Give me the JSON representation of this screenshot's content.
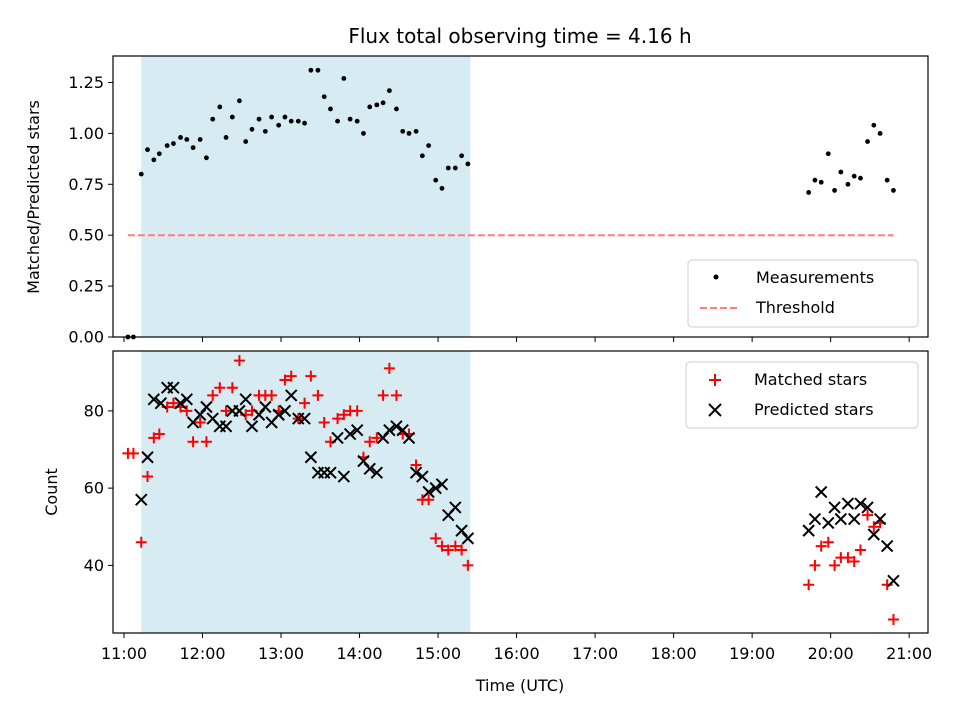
{
  "chart_data": [
    {
      "type": "scatter",
      "title": "Flux total observing time = 4.16 h",
      "xlabel": "",
      "ylabel": "Matched/Predicted stars",
      "xlim": [
        10.86,
        21.24
      ],
      "ylim": [
        0.0,
        1.38
      ],
      "yticks": [
        0.0,
        0.25,
        0.5,
        0.75,
        1.0,
        1.25
      ],
      "ytick_labels": [
        "0.00",
        "0.25",
        "0.50",
        "0.75",
        "1.00",
        "1.25"
      ],
      "shaded_span": {
        "x0": 11.22,
        "x1": 15.41,
        "color": "#add8e6"
      },
      "threshold": {
        "name": "Threshold",
        "y": 0.5,
        "x0": 11.05,
        "x1": 20.8,
        "color": "#ff7f7f"
      },
      "legend": {
        "position": "lower right",
        "entries": [
          "Measurements",
          "Threshold"
        ]
      },
      "series": [
        {
          "name": "Measurements",
          "marker": "dot",
          "color": "#000000",
          "x": [
            11.05,
            11.12,
            11.22,
            11.3,
            11.38,
            11.45,
            11.55,
            11.63,
            11.72,
            11.8,
            11.88,
            11.97,
            12.05,
            12.13,
            12.22,
            12.3,
            12.38,
            12.47,
            12.55,
            12.63,
            12.72,
            12.8,
            12.88,
            12.97,
            13.05,
            13.13,
            13.22,
            13.3,
            13.38,
            13.47,
            13.55,
            13.63,
            13.72,
            13.8,
            13.88,
            13.97,
            14.05,
            14.13,
            14.22,
            14.3,
            14.38,
            14.47,
            14.55,
            14.63,
            14.72,
            14.8,
            14.88,
            14.97,
            15.05,
            15.13,
            15.22,
            15.3,
            15.38,
            19.72,
            19.8,
            19.88,
            19.97,
            20.05,
            20.13,
            20.22,
            20.3,
            20.38,
            20.47,
            20.55,
            20.63,
            20.72,
            20.8
          ],
          "y": [
            0.0,
            0.0,
            0.8,
            0.92,
            0.87,
            0.9,
            0.94,
            0.95,
            0.98,
            0.97,
            0.93,
            0.97,
            0.88,
            1.07,
            1.13,
            0.98,
            1.08,
            1.16,
            0.96,
            1.02,
            1.07,
            1.01,
            1.08,
            1.04,
            1.08,
            1.06,
            1.06,
            1.05,
            1.31,
            1.31,
            1.18,
            1.12,
            1.06,
            1.27,
            1.07,
            1.06,
            1.0,
            1.13,
            1.14,
            1.15,
            1.21,
            1.12,
            1.01,
            1.0,
            1.01,
            0.89,
            0.94,
            0.77,
            0.73,
            0.83,
            0.83,
            0.89,
            0.85,
            0.71,
            0.77,
            0.76,
            0.9,
            0.72,
            0.81,
            0.75,
            0.79,
            0.78,
            0.96,
            1.04,
            1.0,
            0.77,
            0.72
          ]
        }
      ]
    },
    {
      "type": "scatter",
      "title": "",
      "xlabel": "Time (UTC)",
      "ylabel": "Count",
      "xlim": [
        10.86,
        21.24
      ],
      "ylim": [
        22.5,
        95.5
      ],
      "yticks": [
        40,
        60,
        80
      ],
      "ytick_labels": [
        "40",
        "60",
        "80"
      ],
      "xticks": [
        11,
        12,
        13,
        14,
        15,
        16,
        17,
        18,
        19,
        20,
        21
      ],
      "xtick_labels": [
        "11:00",
        "12:00",
        "13:00",
        "14:00",
        "15:00",
        "16:00",
        "17:00",
        "18:00",
        "19:00",
        "20:00",
        "21:00"
      ],
      "shaded_span": {
        "x0": 11.22,
        "x1": 15.41,
        "color": "#add8e6"
      },
      "legend": {
        "position": "upper right",
        "entries": [
          "Matched stars",
          "Predicted stars"
        ]
      },
      "series": [
        {
          "name": "Matched stars",
          "marker": "plus",
          "color": "#ff0000",
          "x": [
            11.05,
            11.12,
            11.22,
            11.3,
            11.38,
            11.45,
            11.55,
            11.63,
            11.72,
            11.8,
            11.88,
            11.97,
            12.05,
            12.13,
            12.22,
            12.3,
            12.38,
            12.47,
            12.55,
            12.63,
            12.72,
            12.8,
            12.88,
            12.97,
            13.05,
            13.13,
            13.22,
            13.3,
            13.38,
            13.47,
            13.55,
            13.63,
            13.72,
            13.8,
            13.88,
            13.97,
            14.05,
            14.13,
            14.22,
            14.3,
            14.38,
            14.47,
            14.55,
            14.63,
            14.72,
            14.8,
            14.88,
            14.97,
            15.05,
            15.13,
            15.22,
            15.3,
            15.38,
            19.72,
            19.8,
            19.88,
            19.97,
            20.05,
            20.13,
            20.22,
            20.3,
            20.38,
            20.47,
            20.55,
            20.63,
            20.72,
            20.8
          ],
          "y": [
            69,
            69,
            46,
            63,
            73,
            74,
            81,
            82,
            81,
            80,
            72,
            77,
            72,
            84,
            86,
            80,
            86,
            93,
            79,
            80,
            84,
            84,
            84,
            80,
            88,
            89,
            78,
            82,
            89,
            84,
            77,
            72,
            78,
            79,
            80,
            80,
            68,
            72,
            73,
            84,
            91,
            84,
            74,
            74,
            66,
            57,
            57,
            47,
            45,
            44,
            45,
            44,
            40,
            35,
            40,
            45,
            46,
            40,
            42,
            42,
            41,
            44,
            53,
            50,
            51,
            35,
            26
          ]
        },
        {
          "name": "Predicted stars",
          "marker": "x",
          "color": "#000000",
          "x": [
            11.22,
            11.3,
            11.38,
            11.47,
            11.55,
            11.63,
            11.72,
            11.8,
            11.88,
            11.97,
            12.05,
            12.13,
            12.22,
            12.3,
            12.38,
            12.47,
            12.55,
            12.63,
            12.72,
            12.8,
            12.88,
            12.97,
            13.05,
            13.13,
            13.22,
            13.3,
            13.38,
            13.47,
            13.55,
            13.63,
            13.72,
            13.8,
            13.88,
            13.97,
            14.05,
            14.13,
            14.22,
            14.3,
            14.38,
            14.47,
            14.55,
            14.63,
            14.72,
            14.8,
            14.88,
            14.97,
            15.05,
            15.13,
            15.22,
            15.3,
            15.38,
            19.72,
            19.8,
            19.88,
            19.97,
            20.05,
            20.13,
            20.22,
            20.3,
            20.38,
            20.47,
            20.55,
            20.63,
            20.72,
            20.8
          ],
          "y": [
            57,
            68,
            83,
            82,
            86,
            86,
            82,
            83,
            77,
            79,
            81,
            78,
            76,
            76,
            80,
            80,
            83,
            76,
            79,
            81,
            77,
            79,
            80,
            84,
            78,
            78,
            68,
            64,
            64,
            64,
            73,
            63,
            74,
            75,
            67,
            65,
            64,
            73,
            75,
            76,
            75,
            73,
            64,
            63,
            59,
            60,
            61,
            53,
            55,
            49,
            47,
            49,
            52,
            59,
            51,
            55,
            52,
            56,
            52,
            56,
            55,
            48,
            52,
            45,
            36
          ]
        }
      ]
    }
  ]
}
